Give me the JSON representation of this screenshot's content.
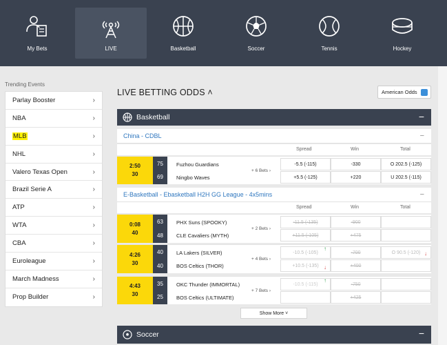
{
  "nav": [
    {
      "label": "My Bets",
      "icon": "clipboard-person-icon"
    },
    {
      "label": "LIVE",
      "icon": "live-broadcast-icon",
      "active": true
    },
    {
      "label": "Basketball",
      "icon": "basketball-icon"
    },
    {
      "label": "Soccer",
      "icon": "soccer-ball-icon"
    },
    {
      "label": "Tennis",
      "icon": "tennis-ball-icon"
    },
    {
      "label": "Hockey",
      "icon": "hockey-puck-icon"
    }
  ],
  "sidebar": {
    "title": "Trending Events",
    "items": [
      {
        "label": "Parlay Booster"
      },
      {
        "label": "NBA"
      },
      {
        "label": "MLB",
        "highlight": true
      },
      {
        "label": "NHL"
      },
      {
        "label": "Valero Texas Open"
      },
      {
        "label": "Brazil Serie A"
      },
      {
        "label": "ATP"
      },
      {
        "label": "WTA"
      },
      {
        "label": "CBA"
      },
      {
        "label": "Euroleague"
      },
      {
        "label": "March Madness"
      },
      {
        "label": "Prop Builder"
      }
    ]
  },
  "main": {
    "title": "LIVE BETTING ODDS",
    "odds_format": "American Odds",
    "basketball_section": "Basketball",
    "soccer_section": "Soccer",
    "columns": {
      "spread": "Spread",
      "win": "Win",
      "total": "Total"
    },
    "leagues": [
      {
        "name": "China - CDBL"
      },
      {
        "name": "E-Basketball - Ebasketball H2H GG League - 4x5mins"
      }
    ],
    "matches": [
      {
        "clock": "2:50",
        "period": "30",
        "s1": "75",
        "s2": "69",
        "t1": "Fuzhou Guardians",
        "t2": "Ningbo Waves",
        "bets": "+ 6 Bets",
        "sp1": "-5.5 (-115)",
        "sp2": "+5.5 (-125)",
        "w1": "-330",
        "w2": "+220",
        "to1": "O 202.5 (-125)",
        "to2": "U 202.5 (-115)"
      },
      {
        "clock": "0:08",
        "period": "40",
        "s1": "63",
        "s2": "48",
        "t1": "PHX Suns (SPOOKY)",
        "t2": "CLE Cavaliers (MYTH)",
        "bets": "+ 2 Bets",
        "sp1": "-11.5 (-135)",
        "sp2": "+11.5 (-105)",
        "w1": "-900",
        "w2": "+475",
        "to1": "",
        "to2": ""
      },
      {
        "clock": "4:26",
        "period": "30",
        "s1": "40",
        "s2": "40",
        "t1": "LA Lakers (SILVER)",
        "t2": "BOS Celtics (THOR)",
        "bets": "+ 4 Bets",
        "sp1": "-10.5 (-105)",
        "sp2": "+10.5 (-135)",
        "w1": "-700",
        "w2": "+400",
        "to1": "O 90.5 (-120)",
        "to2": ""
      },
      {
        "clock": "4:43",
        "period": "30",
        "s1": "35",
        "s2": "25",
        "t1": "OKC Thunder (IMMORTAL)",
        "t2": "BOS Celtics (ULTIMATE)",
        "bets": "+ 7 Bets",
        "sp1": "-10.5 (-115)",
        "sp2": "",
        "w1": "-750",
        "w2": "+425",
        "to1": "",
        "to2": ""
      }
    ],
    "show_more": "Show More"
  }
}
